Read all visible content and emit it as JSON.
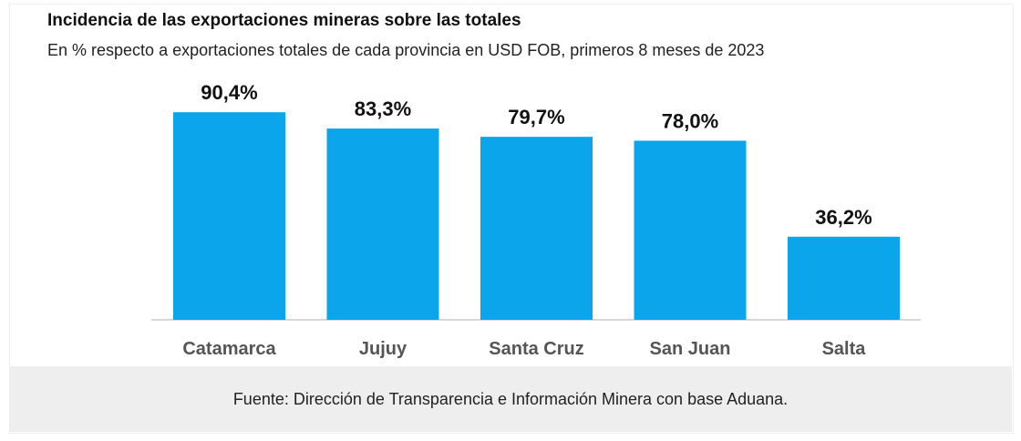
{
  "header": {
    "title": "Incidencia de las exportaciones mineras sobre las totales",
    "subtitle": "En % respecto a exportaciones totales de cada provincia en USD FOB, primeros 8 meses de 2023"
  },
  "footer": {
    "source": "Fuente: Dirección de Transparencia e Información Minera con base Aduana."
  },
  "colors": {
    "bar": "#0aa5eb",
    "axis": "#cccccc"
  },
  "chart_data": {
    "type": "bar",
    "title": "Incidencia de las exportaciones mineras sobre las totales",
    "categories": [
      "Catamarca",
      "Jujuy",
      "Santa Cruz",
      "San Juan",
      "Salta"
    ],
    "values": [
      90.4,
      83.3,
      79.7,
      78.0,
      36.2
    ],
    "value_labels": [
      "90,4%",
      "83,3%",
      "79,7%",
      "78,0%",
      "36,2%"
    ],
    "xlabel": "",
    "ylabel": "",
    "ylim": [
      0,
      100
    ],
    "grid": false,
    "legend": "none"
  }
}
